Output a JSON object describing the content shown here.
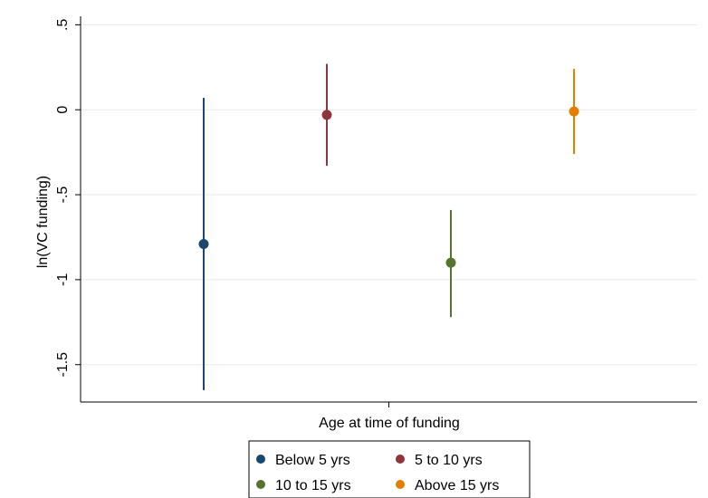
{
  "chart_data": {
    "type": "scatter",
    "title": "",
    "xlabel": "Age at time of funding",
    "ylabel": "ln(VC funding)",
    "ylim": [
      -1.72,
      0.55
    ],
    "yticks": [
      {
        "value": 0.5,
        "label": ".5"
      },
      {
        "value": 0,
        "label": "0"
      },
      {
        "value": -0.5,
        "label": "-.5"
      },
      {
        "value": -1,
        "label": "-1"
      },
      {
        "value": -1.5,
        "label": "-1.5"
      }
    ],
    "grid": true,
    "legend_position": "bottom",
    "series": [
      {
        "name": "Below 5 yrs",
        "color": "#1a476f",
        "x": 1,
        "estimate": -0.79,
        "ci_low": -1.65,
        "ci_high": 0.07
      },
      {
        "name": "5 to 10 yrs",
        "color": "#90353b",
        "x": 2,
        "estimate": -0.03,
        "ci_low": -0.33,
        "ci_high": 0.27
      },
      {
        "name": "10 to 15 yrs",
        "color": "#55752f",
        "x": 3,
        "estimate": -0.9,
        "ci_low": -1.22,
        "ci_high": -0.59
      },
      {
        "name": "Above 15 yrs",
        "color": "#e37e00",
        "x": 4,
        "estimate": -0.01,
        "ci_low": -0.26,
        "ci_high": 0.24
      }
    ]
  }
}
